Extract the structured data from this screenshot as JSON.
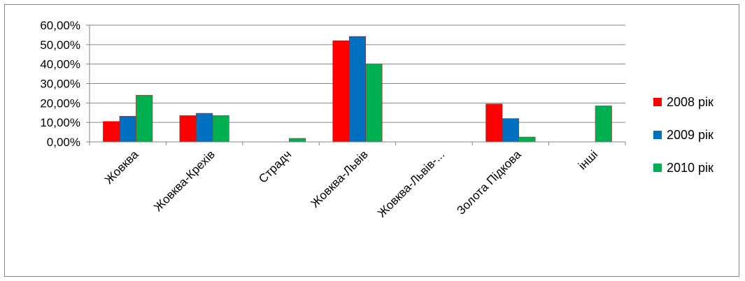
{
  "chart_data": {
    "type": "bar",
    "categories": [
      "Жовква",
      "Жовква-Крехів",
      "Страдч",
      "Жовква-Львів",
      "Жовква-Львів-...",
      "Золота Підкова",
      "інші"
    ],
    "series": [
      {
        "name": "2008 рік",
        "color": "#ff0000",
        "values": [
          10.5,
          13.5,
          0,
          52.0,
          0,
          19.5,
          0
        ]
      },
      {
        "name": "2009 рік",
        "color": "#0070c0",
        "values": [
          13.2,
          14.7,
          0,
          54.2,
          0,
          12.0,
          0
        ]
      },
      {
        "name": "2010 рік",
        "color": "#00b050",
        "values": [
          24.0,
          13.5,
          1.8,
          40.0,
          0,
          2.5,
          18.5
        ]
      }
    ],
    "yticks": [
      "0,00%",
      "10,00%",
      "20,00%",
      "30,00%",
      "40,00%",
      "50,00%",
      "60,00%"
    ],
    "ylim": [
      0,
      60
    ],
    "grid": true,
    "legend_position": "right",
    "title": "",
    "xlabel": "",
    "ylabel": ""
  }
}
